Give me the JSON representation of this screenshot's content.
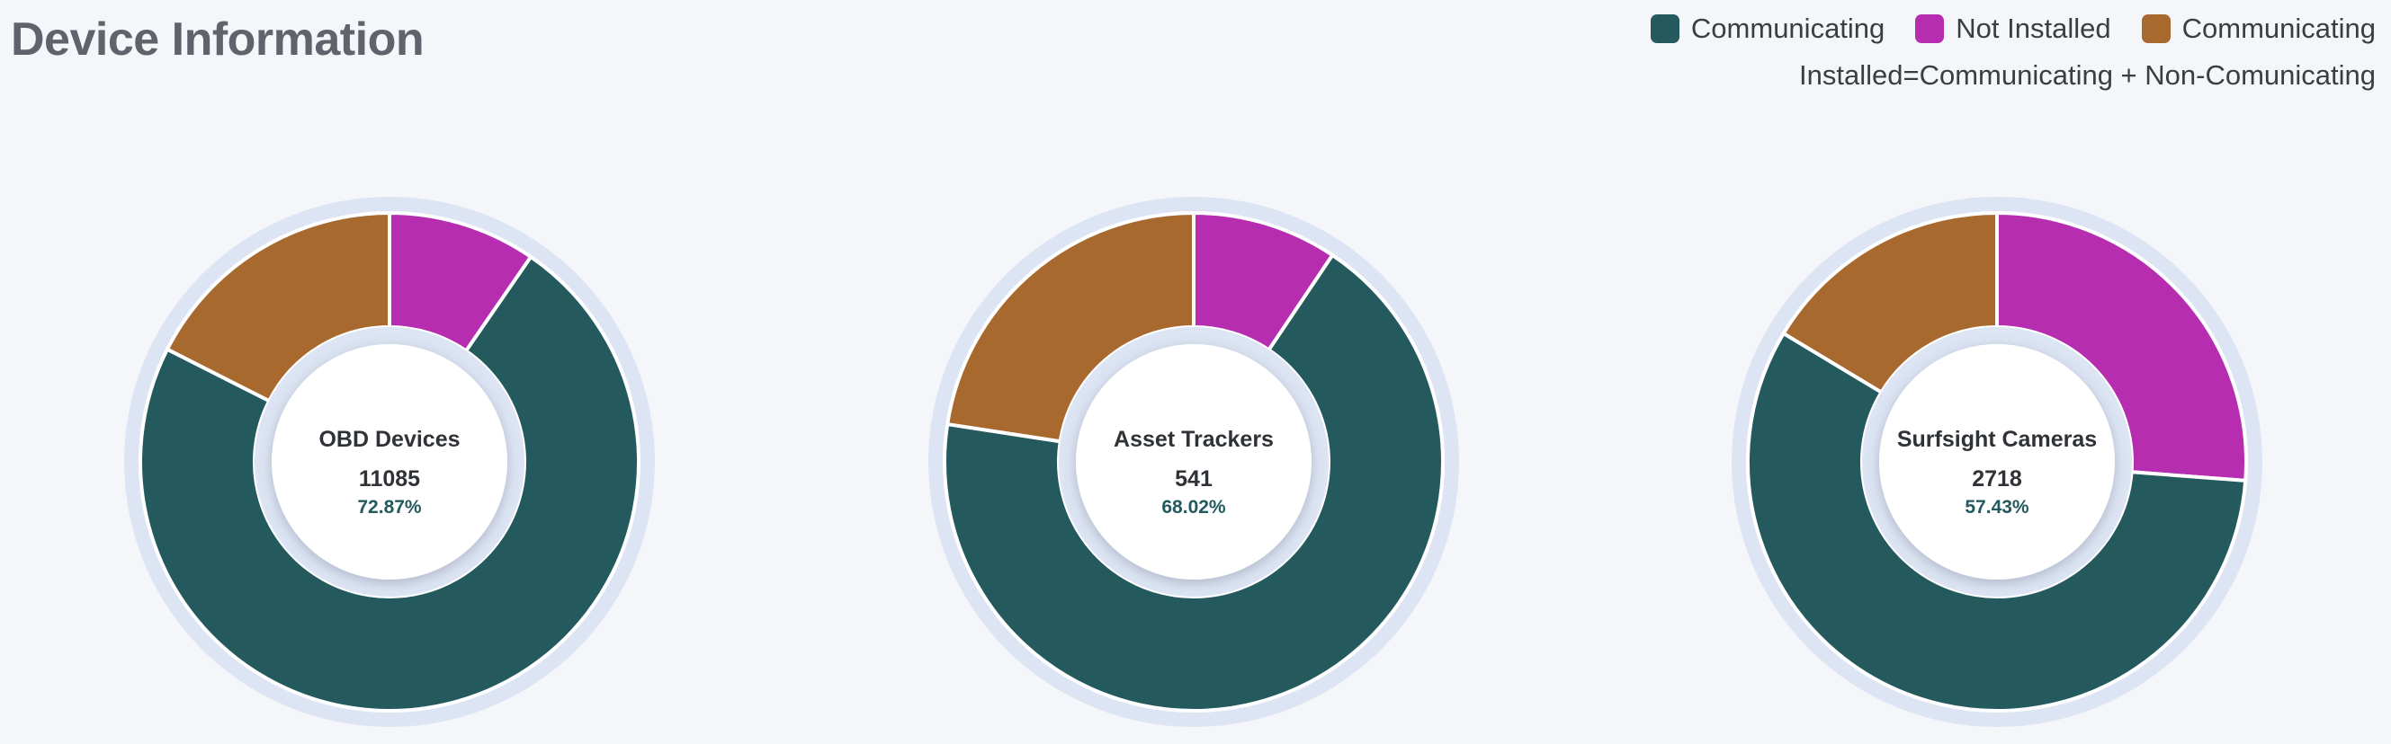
{
  "header": {
    "title": "Device Information"
  },
  "legend": {
    "items": [
      {
        "label": "Communicating",
        "color": "#245a5e"
      },
      {
        "label": "Not Installed",
        "color": "#b62db0"
      },
      {
        "label": "Communicating",
        "color": "#a8692f"
      }
    ],
    "note": "Installed=Communicating + Non-Comunicating"
  },
  "colors": {
    "ring": "#dde5f4",
    "separator": "#ffffff",
    "center": "#ffffff"
  },
  "chart_data": [
    {
      "type": "pie",
      "name": "OBD Devices",
      "count": "11085",
      "percent": "72.87%",
      "slices": [
        {
          "legend": "Not Installed",
          "value": 9.6,
          "color": "#b62db0"
        },
        {
          "legend": "Communicating",
          "value": 72.87,
          "color": "#245a5e"
        },
        {
          "legend": "Communicating (orange)",
          "value": 17.53,
          "color": "#a8692f"
        }
      ]
    },
    {
      "type": "pie",
      "name": "Asset Trackers",
      "count": "541",
      "percent": "68.02%",
      "slices": [
        {
          "legend": "Not Installed",
          "value": 9.4,
          "color": "#b62db0"
        },
        {
          "legend": "Communicating",
          "value": 68.02,
          "color": "#245a5e"
        },
        {
          "legend": "Communicating (orange)",
          "value": 22.58,
          "color": "#a8692f"
        }
      ]
    },
    {
      "type": "pie",
      "name": "Surfsight Cameras",
      "count": "2718",
      "percent": "57.43%",
      "slices": [
        {
          "legend": "Not Installed",
          "value": 26.2,
          "color": "#b62db0"
        },
        {
          "legend": "Communicating",
          "value": 57.43,
          "color": "#245a5e"
        },
        {
          "legend": "Communicating (orange)",
          "value": 16.37,
          "color": "#a8692f"
        }
      ]
    }
  ]
}
